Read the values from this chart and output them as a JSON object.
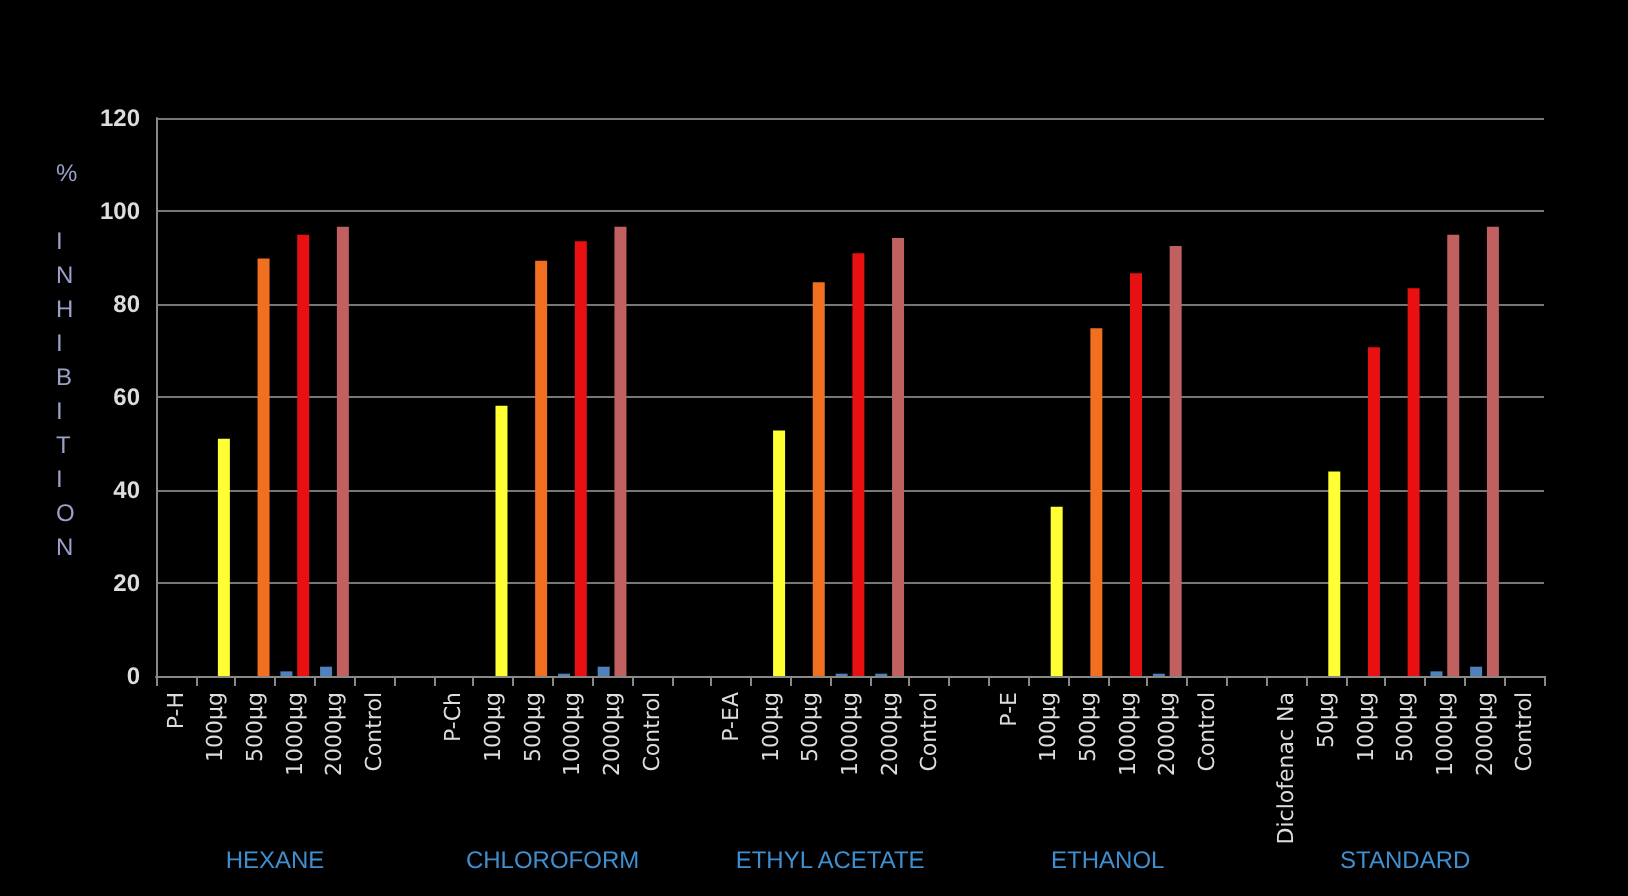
{
  "chart_data": {
    "type": "bar",
    "ylabel": "% INHIBITION",
    "categories": [
      "P-H",
      "100µg",
      "500µg",
      "1000µg",
      "2000µg",
      "Control",
      null,
      "P-Ch",
      "100µg",
      "500µg",
      "1000µg",
      "2000µg",
      "Control",
      null,
      "P-EA",
      "100µg",
      "500µg",
      "1000µg",
      "2000µg",
      "Control",
      null,
      "P-E",
      "100µg",
      "500µg",
      "1000µg",
      "2000µg",
      "Control",
      null,
      "Diclofenac Na",
      "50µg",
      "100µg",
      "500µg",
      "1000µg",
      "2000µg",
      "Control"
    ],
    "series": [
      {
        "color": "#4f81bd",
        "values": [
          null,
          null,
          null,
          1,
          2,
          null,
          null,
          null,
          null,
          null,
          0.5,
          2,
          null,
          null,
          null,
          null,
          null,
          0.5,
          0.5,
          null,
          null,
          null,
          null,
          null,
          null,
          0.5,
          null,
          null,
          null,
          null,
          null,
          null,
          1,
          2,
          null
        ]
      },
      {
        "colors": [
          null,
          "#ffff33",
          "#f07020",
          "#e81010",
          "#c06060",
          null,
          null,
          null,
          "#ffff33",
          "#f07020",
          "#e81010",
          "#c06060",
          null,
          null,
          null,
          "#ffff33",
          "#f07020",
          "#e81010",
          "#c06060",
          null,
          null,
          null,
          "#ffff33",
          "#f07020",
          "#e81010",
          "#c06060",
          null,
          null,
          null,
          "#ffff33",
          "#e81010",
          "#e81010",
          "#c06060",
          "#c06060",
          null
        ],
        "values": [
          null,
          51,
          89.8,
          94.9,
          96.6,
          null,
          null,
          null,
          58.1,
          89.3,
          93.5,
          96.6,
          null,
          null,
          null,
          52.8,
          84.7,
          90.9,
          94.2,
          null,
          null,
          null,
          36.4,
          74.8,
          86.6,
          92.5,
          null,
          null,
          null,
          44,
          70.7,
          83.4,
          94.9,
          96.6,
          null
        ]
      }
    ],
    "ylim": [
      0,
      120
    ],
    "yticks": [
      0,
      20,
      40,
      60,
      80,
      100,
      120
    ],
    "grid": "y",
    "annotations": [
      "HEXANE",
      "CHLOROFORM",
      "ETHYL ACETATE",
      "ETHANOL",
      "STANDARD"
    ]
  }
}
